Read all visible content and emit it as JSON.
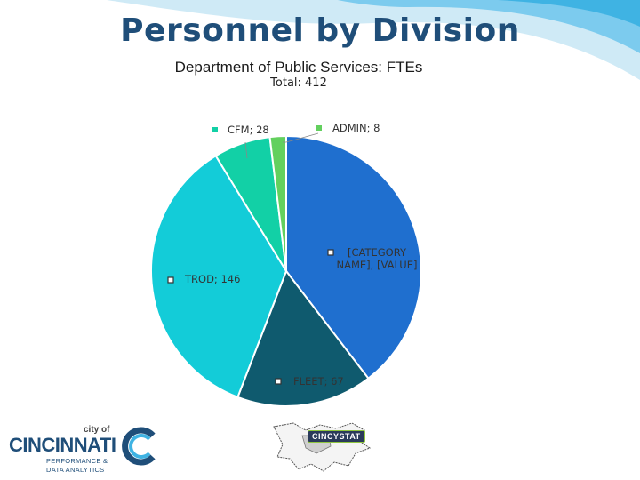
{
  "header": {
    "title": "Personnel by Division",
    "subtitle": "Department of Public Services: FTEs",
    "total": "Total: 412"
  },
  "logo": {
    "city_of": "city of",
    "name": "CINCINNATI",
    "tagline_1": "PERFORMANCE &",
    "tagline_2": "DATA ANALYTICS"
  },
  "stat_logo": {
    "text": "CINCYSTAT"
  },
  "colors": {
    "title": "#1f4e79",
    "wave_light": "#cfeaf6",
    "wave_dark": "#3fb3e3"
  },
  "chart_data": {
    "type": "pie",
    "title": "Total: 412",
    "start": "12 o'clock, clockwise",
    "slices": [
      {
        "label": "[CATEGORY NAME]",
        "value": "[VALUE]",
        "share": 0.396,
        "color": "#1f6fcf",
        "label_text": "[CATEGORY NAME], [VALUE]"
      },
      {
        "label": "FLEET",
        "value": 67,
        "color": "#0f5a6e",
        "label_text": "FLEET; 67"
      },
      {
        "label": "TROD",
        "value": 146,
        "color": "#13ccd8",
        "label_text": "TROD; 146"
      },
      {
        "label": "CFM",
        "value": 28,
        "color": "#12d0a6",
        "label_text": "CFM; 28"
      },
      {
        "label": "ADMIN",
        "value": 8,
        "color": "#63d05e",
        "label_text": "ADMIN; 8"
      }
    ]
  }
}
